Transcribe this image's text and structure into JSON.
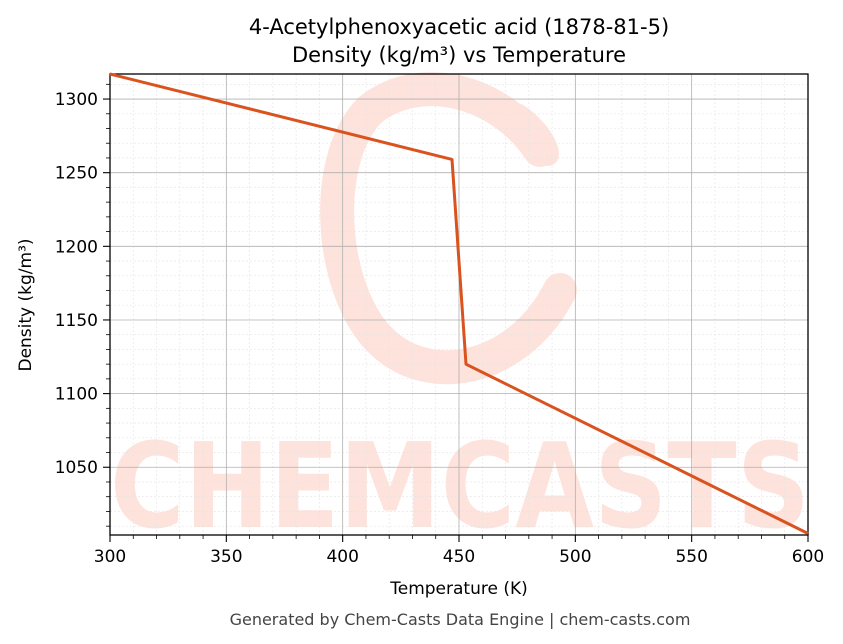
{
  "chart_data": {
    "type": "line",
    "title": "4-Acetylphenoxyacetic acid (1878-81-5)",
    "subtitle": "Density (kg/m³) vs Temperature",
    "xlabel": "Temperature (K)",
    "ylabel": "Density (kg/m³)",
    "xlim": [
      300,
      600
    ],
    "ylim": [
      1004,
      1317
    ],
    "x_ticks": [
      300,
      350,
      400,
      450,
      500,
      550,
      600
    ],
    "y_ticks": [
      1050,
      1100,
      1150,
      1200,
      1250,
      1300
    ],
    "grid": true,
    "series": [
      {
        "x": [
          300,
          447,
          453,
          600
        ],
        "y": [
          1317,
          1259,
          1120,
          1005
        ]
      }
    ]
  },
  "colors": {
    "line": "#d9531e",
    "grid_major": "#b0b0b0",
    "grid_minor": "#e4e4e4",
    "watermark": "#fde3dc"
  },
  "watermark": {
    "text": "CHEMCASTS"
  },
  "footer": {
    "text": "Generated by Chem-Casts Data Engine | chem-casts.com"
  }
}
